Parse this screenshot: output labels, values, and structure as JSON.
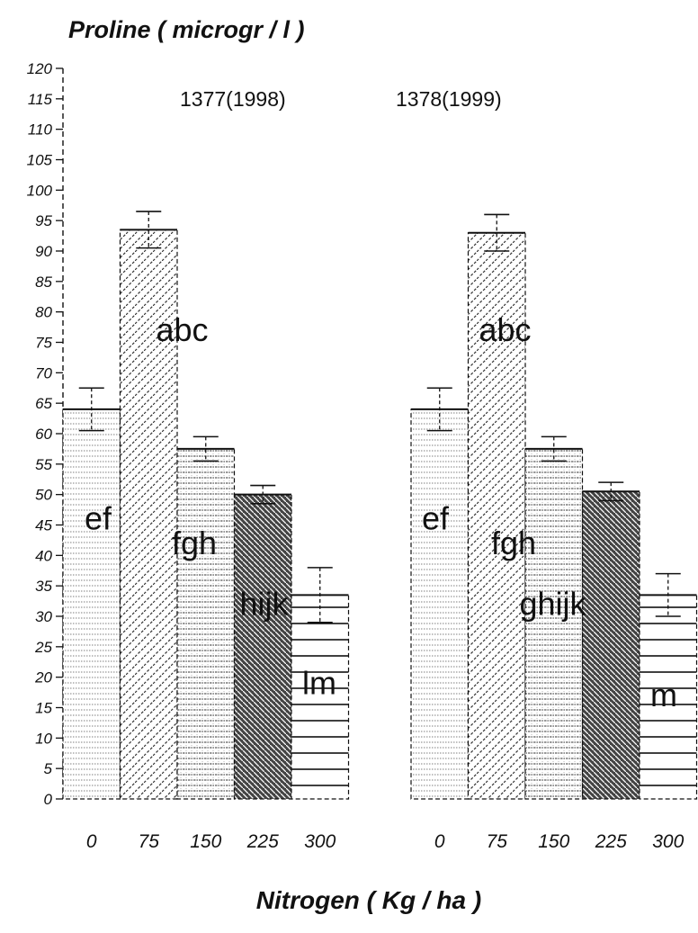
{
  "chart_data": {
    "type": "bar",
    "ylabel": "Proline ( microgr / l )",
    "xlabel": "Nitrogen ( Kg / ha )",
    "ylim": [
      0,
      120
    ],
    "yticks": [
      0,
      5,
      10,
      15,
      20,
      25,
      30,
      35,
      40,
      45,
      50,
      55,
      60,
      65,
      70,
      75,
      80,
      85,
      90,
      95,
      100,
      105,
      110,
      115,
      120
    ],
    "categories": [
      "0",
      "75",
      "150",
      "225",
      "300"
    ],
    "groups": [
      {
        "name": "1377(1998)",
        "values": [
          64,
          93.5,
          57.5,
          50,
          33.5
        ],
        "error": [
          3.5,
          3,
          2,
          1.5,
          4.5
        ],
        "letters": [
          "ef",
          "abc",
          "fgh",
          "hijk",
          "lm"
        ]
      },
      {
        "name": "1378(1999)",
        "values": [
          64,
          93,
          57.5,
          50.5,
          33.5
        ],
        "error": [
          3.5,
          3,
          2,
          1.5,
          3.5
        ],
        "letters": [
          "ef",
          "abc",
          "fgh",
          "ghijk",
          "m"
        ]
      }
    ],
    "grid": false
  }
}
